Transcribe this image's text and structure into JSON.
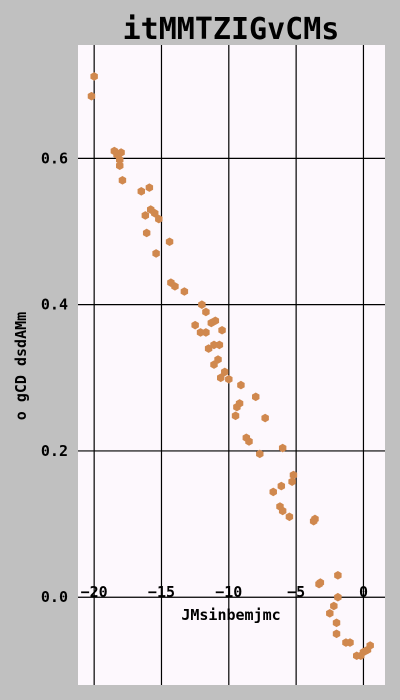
{
  "chart_data": {
    "type": "scatter",
    "title": "itMMTZIGvCMs",
    "xlabel": "JMsinbemjmc",
    "ylabel": "o gCD  dsdAMm",
    "xlim": [
      -21.2,
      1.6
    ],
    "ylim": [
      -0.12,
      0.755
    ],
    "x_ticks": [
      -20,
      -15,
      -10,
      -5,
      0
    ],
    "x_tick_labels": [
      "−20",
      "−15",
      "−10",
      "−5",
      "0"
    ],
    "y_ticks": [
      0.0,
      0.2,
      0.4,
      0.6
    ],
    "y_tick_labels": [
      "0.0",
      "0.2",
      "0.4",
      "0.6"
    ],
    "grid": true,
    "colors": {
      "background": "#c0c0c0",
      "plot_background": "#fdf8fd",
      "point": "#d0884e",
      "grid": "#000000"
    },
    "points": [
      {
        "x": -20.0,
        "y": 0.712
      },
      {
        "x": -20.2,
        "y": 0.685
      },
      {
        "x": -18.5,
        "y": 0.61
      },
      {
        "x": -18.3,
        "y": 0.605
      },
      {
        "x": -18.0,
        "y": 0.608
      },
      {
        "x": -18.1,
        "y": 0.598
      },
      {
        "x": -18.1,
        "y": 0.59
      },
      {
        "x": -17.9,
        "y": 0.57
      },
      {
        "x": -16.5,
        "y": 0.555
      },
      {
        "x": -15.9,
        "y": 0.56
      },
      {
        "x": -16.2,
        "y": 0.522
      },
      {
        "x": -15.8,
        "y": 0.53
      },
      {
        "x": -15.5,
        "y": 0.525
      },
      {
        "x": -15.2,
        "y": 0.517
      },
      {
        "x": -16.1,
        "y": 0.498
      },
      {
        "x": -14.4,
        "y": 0.486
      },
      {
        "x": -15.4,
        "y": 0.47
      },
      {
        "x": -14.3,
        "y": 0.43
      },
      {
        "x": -14.0,
        "y": 0.425
      },
      {
        "x": -13.3,
        "y": 0.418
      },
      {
        "x": -12.0,
        "y": 0.4
      },
      {
        "x": -11.7,
        "y": 0.39
      },
      {
        "x": -11.0,
        "y": 0.378
      },
      {
        "x": -11.3,
        "y": 0.375
      },
      {
        "x": -12.5,
        "y": 0.372
      },
      {
        "x": -10.5,
        "y": 0.365
      },
      {
        "x": -12.1,
        "y": 0.362
      },
      {
        "x": -11.7,
        "y": 0.362
      },
      {
        "x": -11.1,
        "y": 0.345
      },
      {
        "x": -10.7,
        "y": 0.345
      },
      {
        "x": -11.5,
        "y": 0.34
      },
      {
        "x": -10.8,
        "y": 0.325
      },
      {
        "x": -11.1,
        "y": 0.318
      },
      {
        "x": -10.3,
        "y": 0.308
      },
      {
        "x": -10.0,
        "y": 0.298
      },
      {
        "x": -10.6,
        "y": 0.3
      },
      {
        "x": -9.1,
        "y": 0.29
      },
      {
        "x": -8.0,
        "y": 0.274
      },
      {
        "x": -9.2,
        "y": 0.265
      },
      {
        "x": -9.4,
        "y": 0.26
      },
      {
        "x": -9.5,
        "y": 0.248
      },
      {
        "x": -7.3,
        "y": 0.245
      },
      {
        "x": -8.7,
        "y": 0.218
      },
      {
        "x": -8.5,
        "y": 0.213
      },
      {
        "x": -6.0,
        "y": 0.204
      },
      {
        "x": -7.7,
        "y": 0.196
      },
      {
        "x": -5.2,
        "y": 0.167
      },
      {
        "x": -5.3,
        "y": 0.158
      },
      {
        "x": -6.1,
        "y": 0.152
      },
      {
        "x": -6.7,
        "y": 0.144
      },
      {
        "x": -6.2,
        "y": 0.124
      },
      {
        "x": -6.0,
        "y": 0.118
      },
      {
        "x": -5.5,
        "y": 0.11
      },
      {
        "x": -3.6,
        "y": 0.107
      },
      {
        "x": -3.7,
        "y": 0.104
      },
      {
        "x": -1.9,
        "y": 0.03
      },
      {
        "x": -3.2,
        "y": 0.02
      },
      {
        "x": -3.3,
        "y": 0.018
      },
      {
        "x": -1.9,
        "y": 0.0
      },
      {
        "x": -2.2,
        "y": -0.012
      },
      {
        "x": -2.5,
        "y": -0.022
      },
      {
        "x": -2.0,
        "y": -0.035
      },
      {
        "x": -2.0,
        "y": -0.05
      },
      {
        "x": -1.0,
        "y": -0.062
      },
      {
        "x": -1.3,
        "y": -0.062
      },
      {
        "x": 0.5,
        "y": -0.066
      },
      {
        "x": 0.3,
        "y": -0.072
      },
      {
        "x": 0.0,
        "y": -0.075
      },
      {
        "x": -0.2,
        "y": -0.08
      },
      {
        "x": -0.5,
        "y": -0.08
      }
    ]
  }
}
